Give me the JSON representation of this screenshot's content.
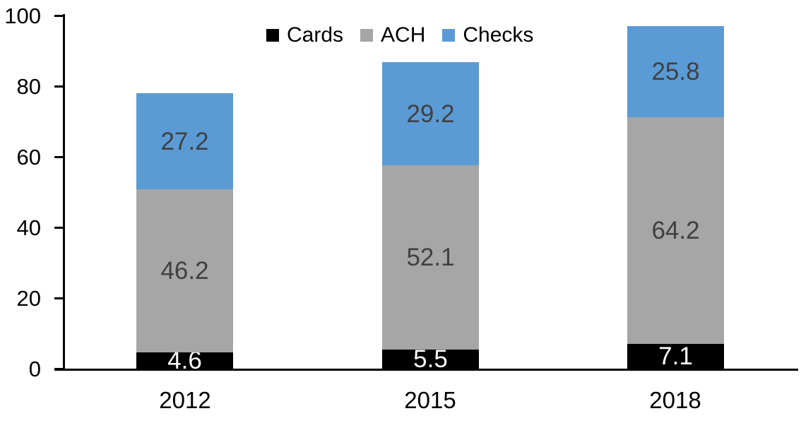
{
  "chart_data": {
    "type": "bar",
    "stacked": true,
    "title": "",
    "categories": [
      "2012",
      "2015",
      "2018"
    ],
    "series": [
      {
        "name": "Cards",
        "color": "#000000",
        "label_color": "#ffffff",
        "values": [
          4.6,
          5.5,
          7.1
        ]
      },
      {
        "name": "ACH",
        "color": "#a6a6a6",
        "label_color": "#404040",
        "values": [
          46.2,
          52.1,
          64.2
        ]
      },
      {
        "name": "Checks",
        "color": "#5b9bd5",
        "label_color": "#404040",
        "values": [
          27.2,
          29.2,
          25.8
        ]
      }
    ],
    "totals": [
      78.0,
      86.8,
      97.1
    ],
    "value_label_decimals": 1,
    "xlabel": "",
    "ylabel": "",
    "ylim": [
      0,
      100
    ],
    "yticks": [
      0,
      20,
      40,
      60,
      80,
      100
    ],
    "grid": false,
    "legend_position": "top",
    "axis_color": "#000000",
    "background": "#ffffff"
  }
}
